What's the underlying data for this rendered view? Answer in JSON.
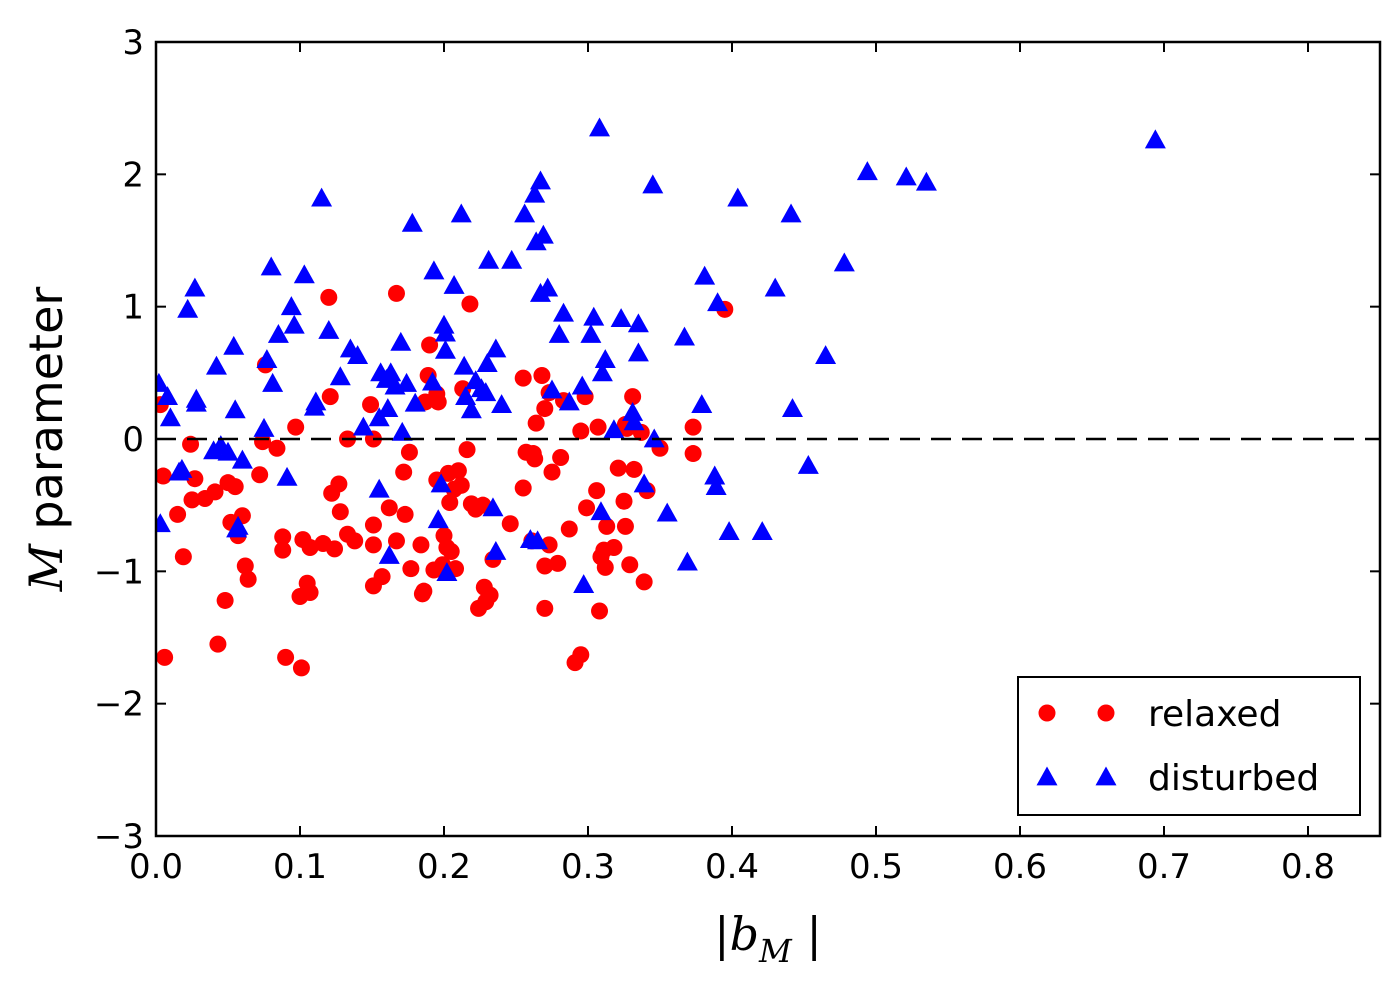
{
  "chart_data": {
    "type": "scatter",
    "title": "",
    "xlabel_main": "|b",
    "xlabel_sub": "M",
    "xlabel_tail": " |",
    "ylabel_var": "M",
    "ylabel_text": " parameter",
    "xlim": [
      0.0,
      0.85
    ],
    "ylim": [
      -3,
      3
    ],
    "x_ticks": [
      0.0,
      0.1,
      0.2,
      0.3,
      0.4,
      0.5,
      0.6,
      0.7,
      0.8
    ],
    "x_tick_labels": [
      "0.0",
      "0.1",
      "0.2",
      "0.3",
      "0.4",
      "0.5",
      "0.6",
      "0.7",
      "0.8"
    ],
    "y_ticks": [
      -3,
      -2,
      -1,
      0,
      1,
      2,
      3
    ],
    "y_tick_labels": [
      "−3",
      "−2",
      "−1",
      "0",
      "1",
      "2",
      "3"
    ],
    "grid": false,
    "reference_line": {
      "y": 0,
      "style": "dashed",
      "color": "#000000"
    },
    "legend_position": "bottom-right",
    "series": [
      {
        "name": "relaxed",
        "marker": "circle",
        "color": "#ff0000",
        "points": [
          [
            0.003,
            0.26
          ],
          [
            0.005,
            -0.28
          ],
          [
            0.006,
            -1.65
          ],
          [
            0.015,
            -0.57
          ],
          [
            0.019,
            -0.89
          ],
          [
            0.024,
            -0.04
          ],
          [
            0.025,
            -0.46
          ],
          [
            0.027,
            -0.3
          ],
          [
            0.034,
            -0.45
          ],
          [
            0.041,
            -0.4
          ],
          [
            0.043,
            -1.55
          ],
          [
            0.048,
            -1.22
          ],
          [
            0.05,
            -0.33
          ],
          [
            0.052,
            -0.63
          ],
          [
            0.055,
            -0.36
          ],
          [
            0.057,
            -0.73
          ],
          [
            0.06,
            -0.58
          ],
          [
            0.062,
            -0.96
          ],
          [
            0.064,
            -1.06
          ],
          [
            0.072,
            -0.27
          ],
          [
            0.074,
            -0.02
          ],
          [
            0.076,
            0.56
          ],
          [
            0.084,
            -0.07
          ],
          [
            0.088,
            -0.74
          ],
          [
            0.088,
            -0.84
          ],
          [
            0.09,
            -1.65
          ],
          [
            0.097,
            0.09
          ],
          [
            0.1,
            -1.19
          ],
          [
            0.101,
            -1.73
          ],
          [
            0.102,
            -0.76
          ],
          [
            0.105,
            -1.09
          ],
          [
            0.107,
            -0.82
          ],
          [
            0.107,
            -1.16
          ],
          [
            0.116,
            -0.79
          ],
          [
            0.12,
            1.07
          ],
          [
            0.121,
            0.32
          ],
          [
            0.122,
            -0.41
          ],
          [
            0.124,
            -0.83
          ],
          [
            0.127,
            -0.34
          ],
          [
            0.128,
            -0.55
          ],
          [
            0.133,
            -0.72
          ],
          [
            0.133,
            0.0
          ],
          [
            0.138,
            -0.77
          ],
          [
            0.149,
            0.26
          ],
          [
            0.151,
            -0.65
          ],
          [
            0.151,
            -0.8
          ],
          [
            0.151,
            -1.11
          ],
          [
            0.151,
            0.0
          ],
          [
            0.157,
            -1.04
          ],
          [
            0.162,
            -0.52
          ],
          [
            0.167,
            1.1
          ],
          [
            0.167,
            -0.77
          ],
          [
            0.172,
            -0.25
          ],
          [
            0.173,
            -0.57
          ],
          [
            0.176,
            -0.1
          ],
          [
            0.177,
            -0.98
          ],
          [
            0.184,
            -0.8
          ],
          [
            0.185,
            -1.17
          ],
          [
            0.186,
            -1.15
          ],
          [
            0.187,
            0.28
          ],
          [
            0.189,
            0.48
          ],
          [
            0.19,
            0.71
          ],
          [
            0.193,
            -0.99
          ],
          [
            0.195,
            0.34
          ],
          [
            0.195,
            -0.31
          ],
          [
            0.196,
            0.28
          ],
          [
            0.199,
            -0.95
          ],
          [
            0.2,
            -0.73
          ],
          [
            0.202,
            -0.82
          ],
          [
            0.203,
            -0.26
          ],
          [
            0.204,
            -0.48
          ],
          [
            0.205,
            -0.85
          ],
          [
            0.207,
            -0.38
          ],
          [
            0.208,
            -0.98
          ],
          [
            0.21,
            -0.24
          ],
          [
            0.212,
            -0.35
          ],
          [
            0.213,
            0.38
          ],
          [
            0.216,
            -0.08
          ],
          [
            0.218,
            1.02
          ],
          [
            0.219,
            -0.49
          ],
          [
            0.222,
            -0.53
          ],
          [
            0.224,
            -1.28
          ],
          [
            0.227,
            -0.5
          ],
          [
            0.228,
            -1.12
          ],
          [
            0.229,
            -1.23
          ],
          [
            0.232,
            -1.18
          ],
          [
            0.234,
            -0.91
          ],
          [
            0.246,
            -0.64
          ],
          [
            0.255,
            0.46
          ],
          [
            0.255,
            -0.37
          ],
          [
            0.257,
            -0.1
          ],
          [
            0.261,
            -0.77
          ],
          [
            0.262,
            -0.11
          ],
          [
            0.263,
            -0.15
          ],
          [
            0.264,
            0.12
          ],
          [
            0.268,
            0.48
          ],
          [
            0.27,
            0.23
          ],
          [
            0.27,
            -0.96
          ],
          [
            0.27,
            -1.28
          ],
          [
            0.273,
            0.35
          ],
          [
            0.273,
            -0.8
          ],
          [
            0.275,
            -0.25
          ],
          [
            0.279,
            -0.94
          ],
          [
            0.281,
            -0.14
          ],
          [
            0.283,
            0.29
          ],
          [
            0.287,
            -0.68
          ],
          [
            0.291,
            -1.69
          ],
          [
            0.295,
            -1.63
          ],
          [
            0.295,
            0.06
          ],
          [
            0.298,
            0.32
          ],
          [
            0.299,
            -0.52
          ],
          [
            0.306,
            -0.39
          ],
          [
            0.307,
            0.09
          ],
          [
            0.308,
            -1.3
          ],
          [
            0.309,
            -0.89
          ],
          [
            0.311,
            -0.84
          ],
          [
            0.312,
            -0.97
          ],
          [
            0.313,
            -0.66
          ],
          [
            0.318,
            -0.82
          ],
          [
            0.321,
            -0.22
          ],
          [
            0.325,
            -0.47
          ],
          [
            0.326,
            0.11
          ],
          [
            0.326,
            -0.66
          ],
          [
            0.327,
            0.08
          ],
          [
            0.329,
            -0.95
          ],
          [
            0.331,
            0.32
          ],
          [
            0.332,
            -0.23
          ],
          [
            0.337,
            0.05
          ],
          [
            0.339,
            -1.08
          ],
          [
            0.341,
            -0.39
          ],
          [
            0.35,
            -0.07
          ],
          [
            0.373,
            0.09
          ],
          [
            0.373,
            -0.11
          ],
          [
            0.395,
            0.98
          ]
        ]
      },
      {
        "name": "disturbed",
        "marker": "triangle",
        "color": "#0000ff",
        "points": [
          [
            0.002,
            0.42
          ],
          [
            0.003,
            -0.64
          ],
          [
            0.008,
            0.32
          ],
          [
            0.01,
            0.16
          ],
          [
            0.016,
            -0.25
          ],
          [
            0.018,
            -0.23
          ],
          [
            0.022,
            0.98
          ],
          [
            0.027,
            1.14
          ],
          [
            0.028,
            0.3
          ],
          [
            0.028,
            0.27
          ],
          [
            0.04,
            -0.09
          ],
          [
            0.042,
            0.55
          ],
          [
            0.045,
            -0.05
          ],
          [
            0.05,
            -0.1
          ],
          [
            0.054,
            0.7
          ],
          [
            0.055,
            0.22
          ],
          [
            0.056,
            -0.68
          ],
          [
            0.057,
            -0.66
          ],
          [
            0.06,
            -0.16
          ],
          [
            0.075,
            0.08
          ],
          [
            0.077,
            0.6
          ],
          [
            0.08,
            1.3
          ],
          [
            0.081,
            0.42
          ],
          [
            0.085,
            0.79
          ],
          [
            0.091,
            -0.29
          ],
          [
            0.094,
            1.0
          ],
          [
            0.096,
            0.86
          ],
          [
            0.103,
            1.24
          ],
          [
            0.11,
            0.24
          ],
          [
            0.111,
            0.28
          ],
          [
            0.115,
            1.82
          ],
          [
            0.12,
            0.82
          ],
          [
            0.128,
            0.47
          ],
          [
            0.135,
            0.68
          ],
          [
            0.14,
            0.63
          ],
          [
            0.144,
            0.09
          ],
          [
            0.155,
            0.16
          ],
          [
            0.155,
            -0.38
          ],
          [
            0.156,
            0.5
          ],
          [
            0.16,
            0.45
          ],
          [
            0.161,
            0.23
          ],
          [
            0.162,
            -0.88
          ],
          [
            0.163,
            0.5
          ],
          [
            0.166,
            0.4
          ],
          [
            0.17,
            0.73
          ],
          [
            0.171,
            0.05
          ],
          [
            0.174,
            0.42
          ],
          [
            0.178,
            1.63
          ],
          [
            0.18,
            0.27
          ],
          [
            0.192,
            0.43
          ],
          [
            0.193,
            1.27
          ],
          [
            0.196,
            -0.61
          ],
          [
            0.198,
            -0.34
          ],
          [
            0.2,
            0.86
          ],
          [
            0.201,
            0.8
          ],
          [
            0.201,
            0.67
          ],
          [
            0.202,
            -1.01
          ],
          [
            0.207,
            1.16
          ],
          [
            0.212,
            1.7
          ],
          [
            0.214,
            0.55
          ],
          [
            0.215,
            0.32
          ],
          [
            0.219,
            0.22
          ],
          [
            0.222,
            0.44
          ],
          [
            0.226,
            0.38
          ],
          [
            0.229,
            0.35
          ],
          [
            0.23,
            0.57
          ],
          [
            0.231,
            1.35
          ],
          [
            0.234,
            -0.52
          ],
          [
            0.236,
            0.68
          ],
          [
            0.236,
            -0.85
          ],
          [
            0.24,
            0.26
          ],
          [
            0.247,
            1.35
          ],
          [
            0.256,
            1.7
          ],
          [
            0.26,
            -0.76
          ],
          [
            0.263,
            1.85
          ],
          [
            0.264,
            1.49
          ],
          [
            0.265,
            -0.77
          ],
          [
            0.267,
            1.1
          ],
          [
            0.267,
            1.95
          ],
          [
            0.269,
            1.54
          ],
          [
            0.272,
            1.14
          ],
          [
            0.275,
            0.37
          ],
          [
            0.28,
            0.79
          ],
          [
            0.283,
            0.95
          ],
          [
            0.287,
            0.28
          ],
          [
            0.296,
            0.4
          ],
          [
            0.297,
            -1.1
          ],
          [
            0.302,
            0.79
          ],
          [
            0.304,
            0.92
          ],
          [
            0.308,
            2.35
          ],
          [
            0.309,
            -0.55
          ],
          [
            0.31,
            0.5
          ],
          [
            0.312,
            0.6
          ],
          [
            0.318,
            0.07
          ],
          [
            0.323,
            0.91
          ],
          [
            0.331,
            0.2
          ],
          [
            0.332,
            0.13
          ],
          [
            0.335,
            0.87
          ],
          [
            0.335,
            0.65
          ],
          [
            0.339,
            -0.34
          ],
          [
            0.345,
            1.92
          ],
          [
            0.346,
            0.0
          ],
          [
            0.355,
            -0.56
          ],
          [
            0.367,
            0.77
          ],
          [
            0.369,
            -0.93
          ],
          [
            0.379,
            0.26
          ],
          [
            0.381,
            1.23
          ],
          [
            0.388,
            -0.28
          ],
          [
            0.389,
            -0.36
          ],
          [
            0.39,
            1.03
          ],
          [
            0.398,
            -0.7
          ],
          [
            0.404,
            1.82
          ],
          [
            0.421,
            -0.7
          ],
          [
            0.43,
            1.14
          ],
          [
            0.441,
            1.7
          ],
          [
            0.442,
            0.23
          ],
          [
            0.453,
            -0.2
          ],
          [
            0.465,
            0.63
          ],
          [
            0.478,
            1.33
          ],
          [
            0.494,
            2.02
          ],
          [
            0.521,
            1.98
          ],
          [
            0.535,
            1.94
          ],
          [
            0.694,
            2.26
          ]
        ]
      }
    ]
  }
}
